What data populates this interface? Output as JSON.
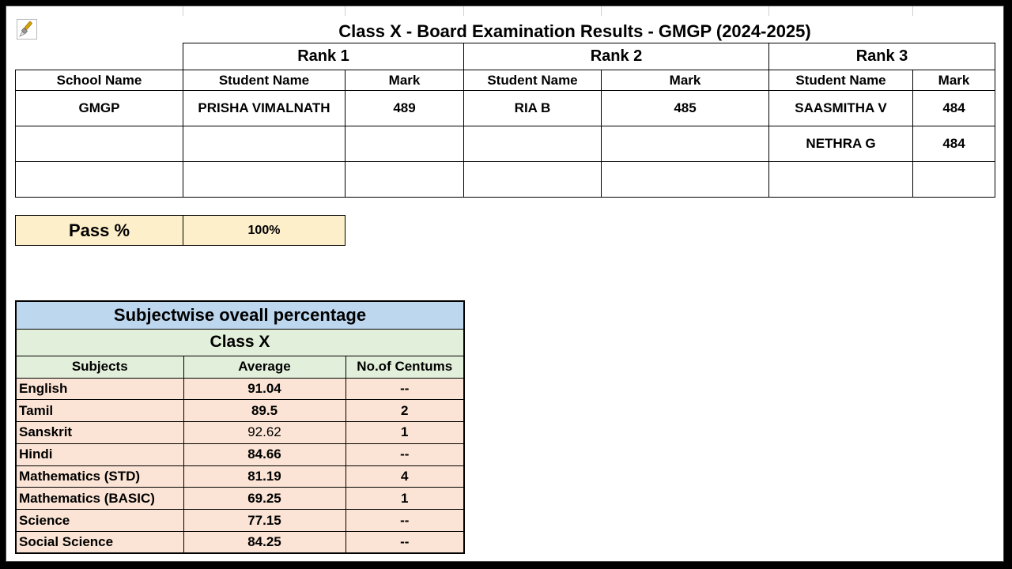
{
  "title": "Class X - Board Examination Results - GMGP (2024-2025)",
  "results": {
    "ranks": [
      "Rank 1",
      "Rank 2",
      "Rank 3"
    ],
    "headers": {
      "school": "School Name",
      "student": "Student Name",
      "mark": "Mark"
    },
    "rows": [
      [
        "GMGP",
        "PRISHA VIMALNATH",
        "489",
        "RIA B",
        "485",
        "SAASMITHA V",
        "484"
      ],
      [
        "",
        "",
        "",
        "",
        "",
        "NETHRA G",
        "484"
      ],
      [
        "",
        "",
        "",
        "",
        "",
        "",
        ""
      ]
    ]
  },
  "pass": {
    "label": "Pass %",
    "value": "100%"
  },
  "subjectwise": {
    "title": "Subjectwise oveall percentage",
    "class_label": "Class X",
    "headers": [
      "Subjects",
      "Average",
      "No.of Centums"
    ],
    "rows": [
      [
        "English",
        "91.04",
        "--"
      ],
      [
        "Tamil",
        "89.5",
        "2"
      ],
      [
        "Sanskrit",
        "92.62",
        "1"
      ],
      [
        "Hindi",
        "84.66",
        "--"
      ],
      [
        "Mathematics (STD)",
        "81.19",
        "4"
      ],
      [
        "Mathematics (BASIC)",
        "69.25",
        "1"
      ],
      [
        "Science",
        "77.15",
        "--"
      ],
      [
        "Social Science",
        "84.25",
        "--"
      ]
    ]
  },
  "icon": "paint-brush-icon"
}
